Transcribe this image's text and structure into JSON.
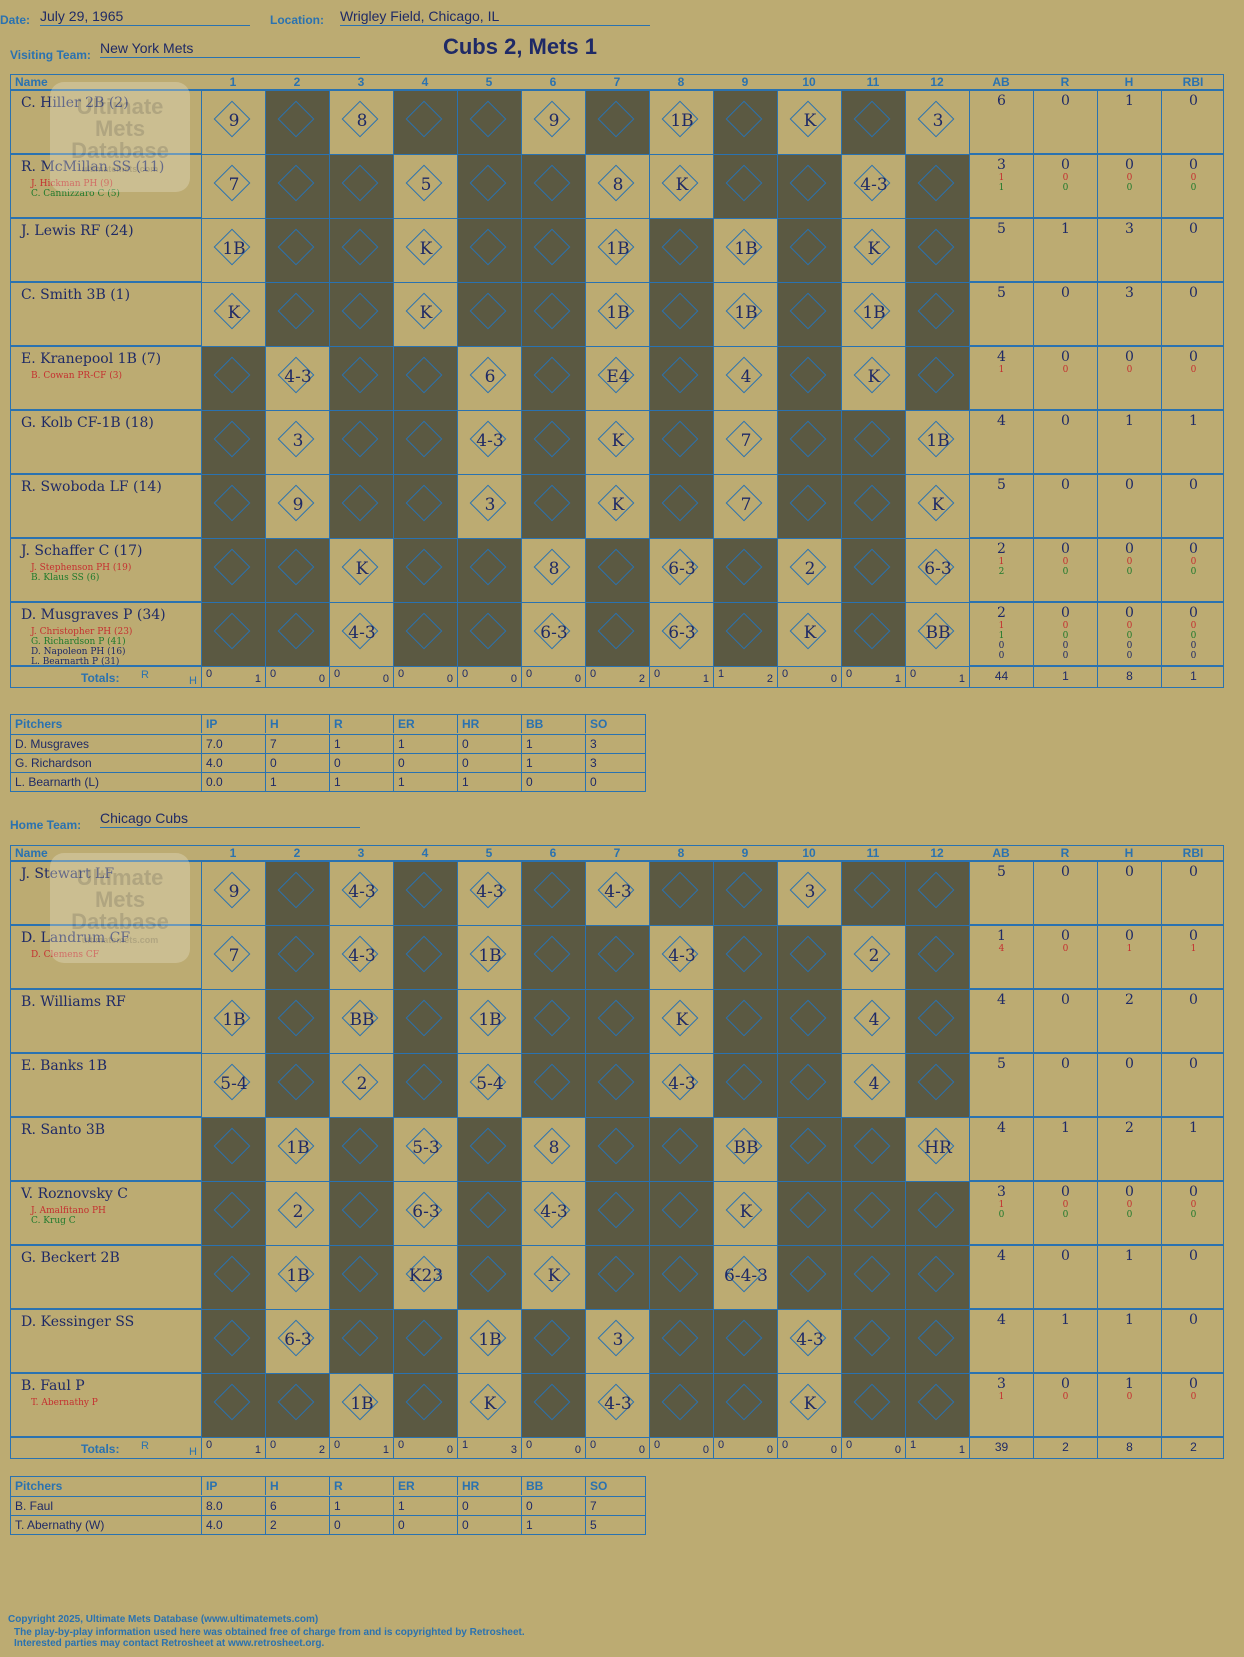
{
  "header": {
    "date_label": "Date:",
    "date": "July 29, 1965",
    "location_label": "Location:",
    "location": "Wrigley Field, Chicago, IL",
    "title": "Cubs 2, Mets 1"
  },
  "watermark": "Ultimate Mets Database",
  "watermark_url": "ultimatemets.com",
  "columns": {
    "name": "Name",
    "innings": [
      "1",
      "2",
      "3",
      "4",
      "5",
      "6",
      "7",
      "8",
      "9",
      "10",
      "11",
      "12"
    ],
    "stats": [
      "AB",
      "R",
      "H",
      "RBI"
    ]
  },
  "visitors": {
    "label": "Visiting Team:",
    "team": "New York Mets",
    "players": [
      {
        "name": "C. Hiller 2B (2)",
        "subs": [],
        "plays": {
          "1": "9",
          "3": "8",
          "6": "9",
          "8": "1B",
          "10": "K",
          "12": "3"
        },
        "stats": [
          "6",
          "0",
          "1",
          "0"
        ]
      },
      {
        "name": "R. McMillan SS (11)",
        "subs": [
          {
            "name": "J. Hickman PH (9)",
            "color": "red",
            "stats": [
              "1",
              "0",
              "0",
              "0"
            ]
          },
          {
            "name": "C. Cannizzaro C (5)",
            "color": "green",
            "stats": [
              "1",
              "0",
              "0",
              "0"
            ]
          }
        ],
        "plays": {
          "1": "7",
          "4": "5",
          "7": "8",
          "8": "K",
          "11": "4-3"
        },
        "stats": [
          "3",
          "0",
          "0",
          "0"
        ]
      },
      {
        "name": "J. Lewis RF (24)",
        "subs": [],
        "plays": {
          "1": "1B",
          "4": "K",
          "7": "1B",
          "9": "1B",
          "11": "K"
        },
        "stats": [
          "5",
          "1",
          "3",
          "0"
        ]
      },
      {
        "name": "C. Smith 3B (1)",
        "subs": [],
        "plays": {
          "1": "K",
          "4": "K",
          "7": "1B",
          "9": "1B",
          "11": "1B"
        },
        "stats": [
          "5",
          "0",
          "3",
          "0"
        ]
      },
      {
        "name": "E. Kranepool 1B (7)",
        "subs": [
          {
            "name": "B. Cowan PR-CF (3)",
            "color": "red",
            "stats": [
              "1",
              "0",
              "0",
              "0"
            ]
          }
        ],
        "plays": {
          "2": "4-3",
          "5": "6",
          "7": "E4",
          "9": "4",
          "11": "K"
        },
        "stats": [
          "4",
          "0",
          "0",
          "0"
        ]
      },
      {
        "name": "G. Kolb CF-1B (18)",
        "subs": [],
        "plays": {
          "2": "3",
          "5": "4-3",
          "7": "K",
          "9": "7",
          "12": "1B"
        },
        "stats": [
          "4",
          "0",
          "1",
          "1"
        ]
      },
      {
        "name": "R. Swoboda LF (14)",
        "subs": [],
        "plays": {
          "2": "9",
          "5": "3",
          "7": "K",
          "9": "7",
          "12": "K"
        },
        "stats": [
          "5",
          "0",
          "0",
          "0"
        ]
      },
      {
        "name": "J. Schaffer C (17)",
        "subs": [
          {
            "name": "J. Stephenson PH (19)",
            "color": "red",
            "stats": [
              "1",
              "0",
              "0",
              "0"
            ]
          },
          {
            "name": "B. Klaus SS (6)",
            "color": "green",
            "stats": [
              "2",
              "0",
              "0",
              "0"
            ]
          }
        ],
        "plays": {
          "3": "K",
          "6": "8",
          "8": "6-3",
          "10": "2",
          "12": "6-3"
        },
        "stats": [
          "2",
          "0",
          "0",
          "0"
        ]
      },
      {
        "name": "D. Musgraves P (34)",
        "subs": [
          {
            "name": "J. Christopher PH (23)",
            "color": "red",
            "stats": [
              "1",
              "0",
              "0",
              "0"
            ]
          },
          {
            "name": "G. Richardson P (41)",
            "color": "green",
            "stats": [
              "1",
              "0",
              "0",
              "0"
            ]
          },
          {
            "name": "D. Napoleon PH (16)",
            "color": "navy",
            "stats": [
              "0",
              "0",
              "0",
              "0"
            ]
          },
          {
            "name": "L. Bearnarth P (31)",
            "color": "navy",
            "stats": [
              "0",
              "0",
              "0",
              "0"
            ]
          }
        ],
        "plays": {
          "3": "4-3",
          "6": "6-3",
          "8": "6-3",
          "10": "K",
          "12": "BB"
        },
        "stats": [
          "2",
          "0",
          "0",
          "0"
        ]
      }
    ],
    "totals_label": "Totals:",
    "totals": [
      [
        "0",
        "1"
      ],
      [
        "0",
        "0"
      ],
      [
        "0",
        "0"
      ],
      [
        "0",
        "0"
      ],
      [
        "0",
        "0"
      ],
      [
        "0",
        "0"
      ],
      [
        "0",
        "2"
      ],
      [
        "0",
        "1"
      ],
      [
        "1",
        "2"
      ],
      [
        "0",
        "0"
      ],
      [
        "0",
        "1"
      ],
      [
        "0",
        "1"
      ]
    ],
    "totals_stats": [
      "44",
      "1",
      "8",
      "1"
    ],
    "pitchers": [
      [
        "D. Musgraves",
        "7.0",
        "7",
        "1",
        "1",
        "0",
        "1",
        "3"
      ],
      [
        "G. Richardson",
        "4.0",
        "0",
        "0",
        "0",
        "0",
        "1",
        "3"
      ],
      [
        "L. Bearnarth (L)",
        "0.0",
        "1",
        "1",
        "1",
        "1",
        "0",
        "0"
      ]
    ]
  },
  "home": {
    "label": "Home Team:",
    "team": "Chicago Cubs",
    "players": [
      {
        "name": "J. Stewart LF",
        "subs": [],
        "plays": {
          "1": "9",
          "3": "4-3",
          "5": "4-3",
          "7": "4-3",
          "10": "3"
        },
        "stats": [
          "5",
          "0",
          "0",
          "0"
        ]
      },
      {
        "name": "D. Landrum CF",
        "subs": [
          {
            "name": "D. Clemens CF",
            "color": "red",
            "stats": [
              "4",
              "0",
              "1",
              "1"
            ]
          }
        ],
        "plays": {
          "1": "7",
          "3": "4-3",
          "5": "1B",
          "8": "4-3",
          "11": "2"
        },
        "stats": [
          "1",
          "0",
          "0",
          "0"
        ]
      },
      {
        "name": "B. Williams RF",
        "subs": [],
        "plays": {
          "1": "1B",
          "3": "BB",
          "5": "1B",
          "8": "K",
          "11": "4"
        },
        "stats": [
          "4",
          "0",
          "2",
          "0"
        ]
      },
      {
        "name": "E. Banks 1B",
        "subs": [],
        "plays": {
          "1": "5-4",
          "3": "2",
          "5": "5-4",
          "8": "4-3",
          "11": "4"
        },
        "stats": [
          "5",
          "0",
          "0",
          "0"
        ]
      },
      {
        "name": "R. Santo 3B",
        "subs": [],
        "plays": {
          "2": "1B",
          "4": "5-3",
          "6": "8",
          "9": "BB",
          "12": "HR"
        },
        "stats": [
          "4",
          "1",
          "2",
          "1"
        ]
      },
      {
        "name": "V. Roznovsky C",
        "subs": [
          {
            "name": "J. Amalfitano PH",
            "color": "red",
            "stats": [
              "1",
              "0",
              "0",
              "0"
            ]
          },
          {
            "name": "C. Krug C",
            "color": "green",
            "stats": [
              "0",
              "0",
              "0",
              "0"
            ]
          }
        ],
        "plays": {
          "2": "2",
          "4": "6-3",
          "6": "4-3",
          "9": "K"
        },
        "stats": [
          "3",
          "0",
          "0",
          "0"
        ]
      },
      {
        "name": "G. Beckert 2B",
        "subs": [],
        "plays": {
          "2": "1B",
          "4": "K23",
          "6": "K",
          "9": "6-4-3"
        },
        "stats": [
          "4",
          "0",
          "1",
          "0"
        ]
      },
      {
        "name": "D. Kessinger SS",
        "subs": [],
        "plays": {
          "2": "6-3",
          "5": "1B",
          "7": "3",
          "10": "4-3"
        },
        "stats": [
          "4",
          "1",
          "1",
          "0"
        ]
      },
      {
        "name": "B. Faul P",
        "subs": [
          {
            "name": "T. Abernathy P",
            "color": "red",
            "stats": [
              "1",
              "0",
              "0",
              "0"
            ]
          }
        ],
        "plays": {
          "3": "1B",
          "5": "K",
          "7": "4-3",
          "10": "K"
        },
        "stats": [
          "3",
          "0",
          "1",
          "0"
        ]
      }
    ],
    "totals_label": "Totals:",
    "totals": [
      [
        "0",
        "1"
      ],
      [
        "0",
        "2"
      ],
      [
        "0",
        "1"
      ],
      [
        "0",
        "0"
      ],
      [
        "1",
        "3"
      ],
      [
        "0",
        "0"
      ],
      [
        "0",
        "0"
      ],
      [
        "0",
        "0"
      ],
      [
        "0",
        "0"
      ],
      [
        "0",
        "0"
      ],
      [
        "0",
        "0"
      ],
      [
        "1",
        "1"
      ]
    ],
    "totals_stats": [
      "39",
      "2",
      "8",
      "2"
    ],
    "pitchers": [
      [
        "B. Faul",
        "8.0",
        "6",
        "1",
        "1",
        "0",
        "0",
        "7"
      ],
      [
        "T. Abernathy (W)",
        "4.0",
        "2",
        "0",
        "0",
        "0",
        "1",
        "5"
      ]
    ]
  },
  "pitcher_headers": [
    "Pitchers",
    "IP",
    "H",
    "R",
    "ER",
    "HR",
    "BB",
    "SO"
  ],
  "totals_rh": [
    "R",
    "H"
  ],
  "footer": {
    "line1": "Copyright 2025, Ultimate Mets Database (www.ultimatemets.com)",
    "line2": "The play-by-play information used here was obtained free of charge from and is copyrighted by Retrosheet.",
    "line3": "Interested parties may contact Retrosheet at www.retrosheet.org."
  }
}
